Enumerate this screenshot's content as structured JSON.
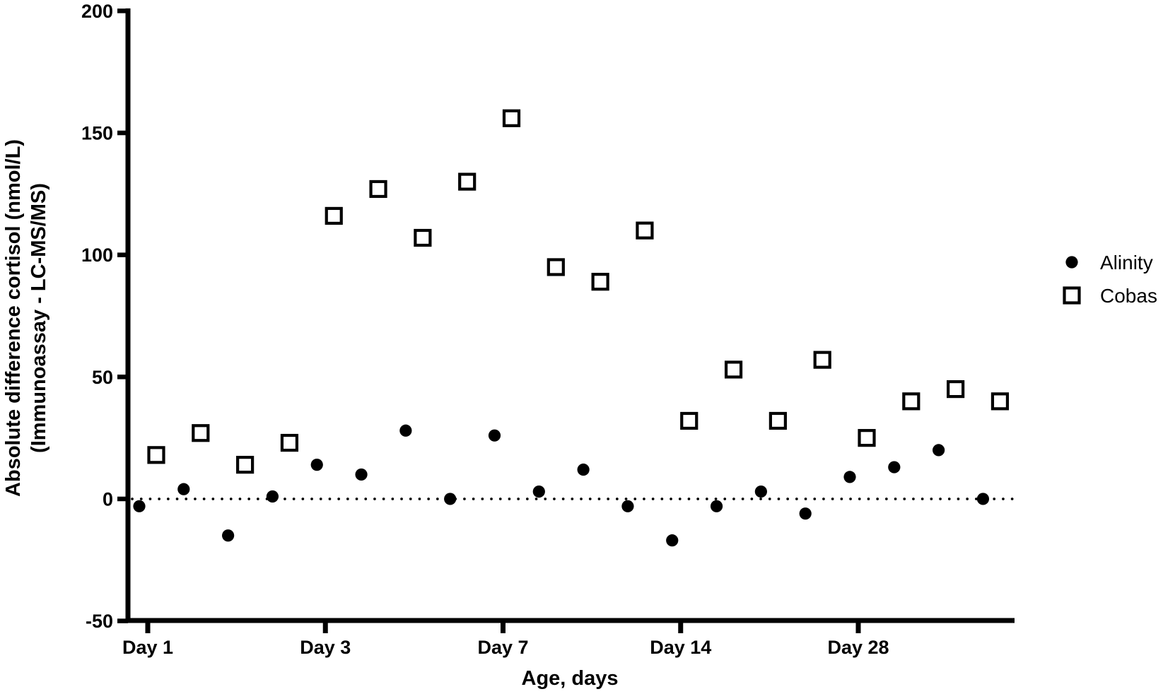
{
  "figure": {
    "background": "#ffffff",
    "foreground": "#000000"
  },
  "chart_data": {
    "type": "scatter",
    "title": "",
    "xlabel": "Age, days",
    "ylabel": "Absolute difference cortisol (nmol/L)",
    "ylabel_line2": "(Immunoassay - LC-MS/MS)",
    "ylim": [
      -50,
      200
    ],
    "yticks": [
      -50,
      0,
      50,
      100,
      150,
      200
    ],
    "x_axis_type": "ordinal (one position per sample, ticks at labelled ages)",
    "n_samples": 20,
    "xticks": [
      {
        "label": "Day 1",
        "sample_index": 0
      },
      {
        "label": "Day 3",
        "sample_index": 4
      },
      {
        "label": "Day 7",
        "sample_index": 8
      },
      {
        "label": "Day 14",
        "sample_index": 12
      },
      {
        "label": "Day 28",
        "sample_index": 16
      }
    ],
    "reference_line": {
      "y": 0,
      "style": "dotted"
    },
    "grid": "off",
    "legend_position": "right-middle",
    "series": [
      {
        "name": "Alinity",
        "marker": "filled-circle",
        "color": "#000000",
        "values": [
          -3,
          4,
          -15,
          1,
          14,
          10,
          28,
          0,
          26,
          3,
          12,
          -3,
          -17,
          -3,
          3,
          -6,
          9,
          13,
          20,
          0
        ]
      },
      {
        "name": "Cobas",
        "marker": "open-square",
        "color": "#000000",
        "values": [
          18,
          27,
          14,
          23,
          116,
          127,
          107,
          130,
          156,
          95,
          89,
          110,
          32,
          53,
          32,
          57,
          25,
          40,
          45,
          40
        ]
      }
    ]
  }
}
